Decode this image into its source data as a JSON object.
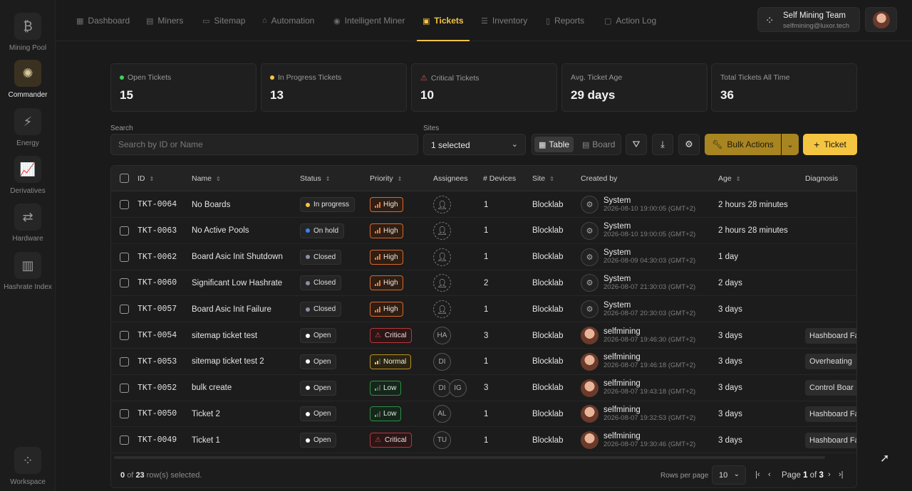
{
  "rail": [
    {
      "label": "Mining Pool",
      "icon": "bitcoin-icon",
      "glyph": "₿"
    },
    {
      "label": "Commander",
      "icon": "commander-icon",
      "glyph": "✺",
      "active": true
    },
    {
      "label": "Energy",
      "icon": "lightning-icon",
      "glyph": "⚡"
    },
    {
      "label": "Derivatives",
      "icon": "derivatives-icon",
      "glyph": "📈"
    },
    {
      "label": "Hardware",
      "icon": "exchange-arrows-icon",
      "glyph": "⇄"
    },
    {
      "label": "Hashrate Index",
      "icon": "bar-chart-icon",
      "glyph": "▥"
    }
  ],
  "workspace": {
    "label": "Workspace",
    "icon": "workspace-icon",
    "glyph": "⁘"
  },
  "nav": [
    {
      "label": "Dashboard",
      "glyph": "▦"
    },
    {
      "label": "Miners",
      "glyph": "▤"
    },
    {
      "label": "Sitemap",
      "glyph": "▭"
    },
    {
      "label": "Automation",
      "glyph": "⌂"
    },
    {
      "label": "Intelligent Miner",
      "glyph": "◉"
    },
    {
      "label": "Tickets",
      "glyph": "▣",
      "active": true
    },
    {
      "label": "Inventory",
      "glyph": "☰"
    },
    {
      "label": "Reports",
      "glyph": "▯"
    },
    {
      "label": "Action Log",
      "glyph": "▢"
    }
  ],
  "team": {
    "name": "Self Mining Team",
    "email": "selfmining@luxor.tech"
  },
  "stats": [
    {
      "label": "Open Tickets",
      "value": "15",
      "marker": "dot",
      "color": "#3ecf5a"
    },
    {
      "label": "In Progress Tickets",
      "value": "13",
      "marker": "dot",
      "color": "#f5c542"
    },
    {
      "label": "Critical Tickets",
      "value": "10",
      "marker": "warn",
      "color": "#e5484d"
    },
    {
      "label": "Avg. Ticket Age",
      "value": "29 days",
      "marker": "none"
    },
    {
      "label": "Total Tickets All Time",
      "value": "36",
      "marker": "none"
    }
  ],
  "filters": {
    "search_label": "Search",
    "search_placeholder": "Search by ID or Name",
    "sites_label": "Sites",
    "sites_value": "1 selected",
    "view_table": "Table",
    "view_board": "Board",
    "bulk_actions": "Bulk Actions",
    "add_ticket": "Ticket"
  },
  "columns": {
    "id": "ID",
    "name": "Name",
    "status": "Status",
    "priority": "Priority",
    "assignees": "Assignees",
    "devices": "# Devices",
    "site": "Site",
    "created_by": "Created by",
    "age": "Age",
    "diagnosis": "Diagnosis"
  },
  "rows": [
    {
      "id": "TKT-0064",
      "name": "No Boards",
      "status": "In progress",
      "status_color": "#f5c542",
      "priority": "High",
      "assignees": [],
      "devices": "1",
      "site": "Blocklab",
      "creator": "System",
      "creator_type": "system",
      "created": "2026-08-10 19:00:05 (GMT+2)",
      "age": "2 hours 28 minutes",
      "diagnosis": ""
    },
    {
      "id": "TKT-0063",
      "name": "No Active Pools",
      "status": "On hold",
      "status_color": "#3b82f6",
      "priority": "High",
      "assignees": [],
      "devices": "1",
      "site": "Blocklab",
      "creator": "System",
      "creator_type": "system",
      "created": "2026-08-10 19:00:05 (GMT+2)",
      "age": "2 hours 28 minutes",
      "diagnosis": ""
    },
    {
      "id": "TKT-0062",
      "name": "Board Asic Init Shutdown",
      "status": "Closed",
      "status_color": "#8a8fa3",
      "priority": "High",
      "assignees": [],
      "devices": "1",
      "site": "Blocklab",
      "creator": "System",
      "creator_type": "system",
      "created": "2026-08-09 04:30:03 (GMT+2)",
      "age": "1 day",
      "diagnosis": ""
    },
    {
      "id": "TKT-0060",
      "name": "Significant Low Hashrate",
      "status": "Closed",
      "status_color": "#8a8fa3",
      "priority": "High",
      "assignees": [],
      "devices": "2",
      "site": "Blocklab",
      "creator": "System",
      "creator_type": "system",
      "created": "2026-08-07 21:30:03 (GMT+2)",
      "age": "2 days",
      "diagnosis": ""
    },
    {
      "id": "TKT-0057",
      "name": "Board Asic Init Failure",
      "status": "Closed",
      "status_color": "#8a8fa3",
      "priority": "High",
      "assignees": [],
      "devices": "1",
      "site": "Blocklab",
      "creator": "System",
      "creator_type": "system",
      "created": "2026-08-07 20:30:03 (GMT+2)",
      "age": "3 days",
      "diagnosis": ""
    },
    {
      "id": "TKT-0054",
      "name": "sitemap ticket test",
      "status": "Open",
      "status_color": "#ffffff",
      "priority": "Critical",
      "assignees": [
        "HA"
      ],
      "devices": "3",
      "site": "Blocklab",
      "creator": "selfmining",
      "creator_type": "user",
      "created": "2026-08-07 19:46:30 (GMT+2)",
      "age": "3 days",
      "diagnosis": "Hashboard Fa"
    },
    {
      "id": "TKT-0053",
      "name": "sitemap ticket test 2",
      "status": "Open",
      "status_color": "#ffffff",
      "priority": "Normal",
      "assignees": [
        "DI"
      ],
      "devices": "1",
      "site": "Blocklab",
      "creator": "selfmining",
      "creator_type": "user",
      "created": "2026-08-07 19:46:18 (GMT+2)",
      "age": "3 days",
      "diagnosis": "Overheating"
    },
    {
      "id": "TKT-0052",
      "name": "bulk create",
      "status": "Open",
      "status_color": "#ffffff",
      "priority": "Low",
      "assignees": [
        "DI",
        "IG"
      ],
      "devices": "3",
      "site": "Blocklab",
      "creator": "selfmining",
      "creator_type": "user",
      "created": "2026-08-07 19:43:18 (GMT+2)",
      "age": "3 days",
      "diagnosis": "Control Boar"
    },
    {
      "id": "TKT-0050",
      "name": "Ticket 2",
      "status": "Open",
      "status_color": "#ffffff",
      "priority": "Low",
      "assignees": [
        "AL"
      ],
      "devices": "1",
      "site": "Blocklab",
      "creator": "selfmining",
      "creator_type": "user",
      "created": "2026-08-07 19:32:53 (GMT+2)",
      "age": "3 days",
      "diagnosis": "Hashboard Fa"
    },
    {
      "id": "TKT-0049",
      "name": "Ticket 1",
      "status": "Open",
      "status_color": "#ffffff",
      "priority": "Critical",
      "assignees": [
        "TU"
      ],
      "devices": "1",
      "site": "Blocklab",
      "creator": "selfmining",
      "creator_type": "user",
      "created": "2026-08-07 19:30:46 (GMT+2)",
      "age": "3 days",
      "diagnosis": "Hashboard Fa"
    }
  ],
  "priority_styles": {
    "High": {
      "border": "#d9682a",
      "bg": "#2e1e14",
      "text": "#f0e6dc",
      "bar": "#f07a32",
      "level": 3
    },
    "Critical": {
      "border": "#b8373b",
      "bg": "#2a1616",
      "text": "#f0dcdc",
      "bar": "#e5484d",
      "level": 0
    },
    "Normal": {
      "border": "#b59122",
      "bg": "#2a2414",
      "text": "#f0ead6",
      "bar": "#f5c542",
      "level": 2
    },
    "Low": {
      "border": "#2f8f46",
      "bg": "#15261a",
      "text": "#dcefe0",
      "bar": "#3ecf5a",
      "level": 1
    }
  },
  "footer": {
    "selected_count": "0",
    "selected_total": "23",
    "selected_suffix": "row(s) selected.",
    "selected_of": "of",
    "rows_per_page_label": "Rows per page",
    "rows_per_page": "10",
    "page_prefix": "Page",
    "page_current": "1",
    "page_of": "of",
    "page_total": "3"
  }
}
